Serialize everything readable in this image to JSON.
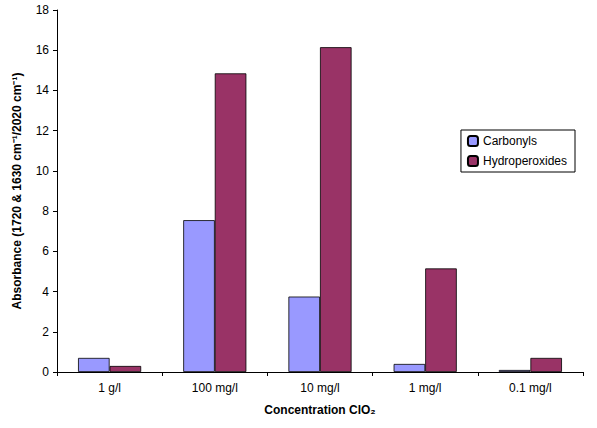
{
  "chart_data": {
    "type": "bar",
    "xlabel": "Concentration ClO₂",
    "ylabel": "Absorbance (1720 & 1630 cm⁻¹/2020 cm⁻¹)",
    "categories": [
      "1 g/l",
      "100 mg/l",
      "10 mg/l",
      "1 mg/l",
      "0.1 mg/l"
    ],
    "series": [
      {
        "name": "Carbonyls",
        "color": "#9999ff",
        "values": [
          0.7,
          7.55,
          3.75,
          0.4,
          0.1
        ]
      },
      {
        "name": "Hydroperoxides",
        "color": "#993366",
        "values": [
          0.3,
          14.85,
          16.15,
          5.15,
          0.7
        ]
      }
    ],
    "ylim": [
      0,
      18
    ],
    "yticks": [
      0,
      2,
      4,
      6,
      8,
      10,
      12,
      14,
      16,
      18
    ],
    "grid": false,
    "legend": "right"
  }
}
